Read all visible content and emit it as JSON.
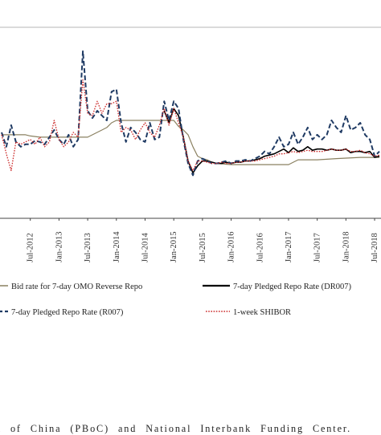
{
  "chart_data": {
    "type": "line",
    "x_ticks": [
      "Jul-2012",
      "Jan-2013",
      "Jul-2013",
      "Jan-2014",
      "Jul-2014",
      "Jan-2015",
      "Jul-2015",
      "Jan-2016",
      "Jul-2016",
      "Jan-2017",
      "Jul-2017",
      "Jan-2018",
      "Jul-2018"
    ],
    "x_start": "2012-01",
    "xlim_months": [
      0,
      79
    ],
    "ylim": [
      0,
      8
    ],
    "grid": false,
    "legend_position": "bottom",
    "series": [
      {
        "name": "Bid rate for 7-day OMO Reverse Repo",
        "color": "#8a8060",
        "style": "solid",
        "values": [
          [
            0,
            3.5
          ],
          [
            5,
            3.5
          ],
          [
            6,
            3.45
          ],
          [
            8,
            3.4
          ],
          [
            12,
            3.4
          ],
          [
            18,
            3.4
          ],
          [
            22,
            3.8
          ],
          [
            23,
            4.0
          ],
          [
            24,
            4.1
          ],
          [
            30,
            4.1
          ],
          [
            34,
            4.1
          ],
          [
            36,
            4.1
          ],
          [
            37,
            3.85
          ],
          [
            38,
            3.7
          ],
          [
            39,
            3.5
          ],
          [
            40,
            3.0
          ],
          [
            41,
            2.6
          ],
          [
            42,
            2.5
          ],
          [
            43,
            2.45
          ],
          [
            44,
            2.35
          ],
          [
            45,
            2.3
          ],
          [
            48,
            2.25
          ],
          [
            60,
            2.25
          ],
          [
            61,
            2.35
          ],
          [
            62,
            2.45
          ],
          [
            63,
            2.45
          ],
          [
            64,
            2.45
          ],
          [
            66,
            2.45
          ],
          [
            70,
            2.5
          ],
          [
            75,
            2.55
          ],
          [
            79,
            2.55
          ]
        ]
      },
      {
        "name": "7-day Pledged Repo Rate (DR007)",
        "color": "#000000",
        "style": "solid",
        "values": [
          [
            34,
            4.5
          ],
          [
            35,
            4.0
          ],
          [
            36,
            4.6
          ],
          [
            37,
            4.3
          ],
          [
            38,
            3.4
          ],
          [
            39,
            2.4
          ],
          [
            40,
            1.9
          ],
          [
            41,
            2.2
          ],
          [
            42,
            2.4
          ],
          [
            43,
            2.4
          ],
          [
            44,
            2.35
          ],
          [
            45,
            2.3
          ],
          [
            46,
            2.3
          ],
          [
            47,
            2.35
          ],
          [
            48,
            2.3
          ],
          [
            49,
            2.35
          ],
          [
            50,
            2.35
          ],
          [
            51,
            2.4
          ],
          [
            52,
            2.4
          ],
          [
            53,
            2.45
          ],
          [
            54,
            2.5
          ],
          [
            55,
            2.6
          ],
          [
            56,
            2.65
          ],
          [
            57,
            2.7
          ],
          [
            58,
            2.8
          ],
          [
            59,
            2.9
          ],
          [
            60,
            2.75
          ],
          [
            61,
            2.95
          ],
          [
            62,
            2.8
          ],
          [
            63,
            2.85
          ],
          [
            64,
            3.0
          ],
          [
            65,
            2.85
          ],
          [
            66,
            2.9
          ],
          [
            67,
            2.9
          ],
          [
            68,
            2.85
          ],
          [
            69,
            2.9
          ],
          [
            70,
            2.85
          ],
          [
            71,
            2.85
          ],
          [
            72,
            2.9
          ],
          [
            73,
            2.75
          ],
          [
            74,
            2.8
          ],
          [
            75,
            2.8
          ],
          [
            76,
            2.75
          ],
          [
            77,
            2.8
          ],
          [
            78,
            2.55
          ],
          [
            79,
            2.6
          ]
        ]
      },
      {
        "name": "7-day Pledged Repo Rate (R007)",
        "color": "#1f3a63",
        "style": "dashed",
        "values": [
          [
            0,
            3.6
          ],
          [
            1,
            3.0
          ],
          [
            2,
            3.9
          ],
          [
            3,
            3.2
          ],
          [
            4,
            3.0
          ],
          [
            5,
            3.1
          ],
          [
            6,
            3.1
          ],
          [
            7,
            3.25
          ],
          [
            8,
            3.2
          ],
          [
            9,
            3.1
          ],
          [
            10,
            3.4
          ],
          [
            11,
            3.7
          ],
          [
            12,
            3.3
          ],
          [
            13,
            3.1
          ],
          [
            14,
            3.5
          ],
          [
            15,
            3.0
          ],
          [
            16,
            3.3
          ],
          [
            17,
            7.0
          ],
          [
            18,
            4.5
          ],
          [
            19,
            4.2
          ],
          [
            20,
            4.5
          ],
          [
            21,
            4.3
          ],
          [
            22,
            4.1
          ],
          [
            23,
            5.3
          ],
          [
            24,
            5.4
          ],
          [
            25,
            4.0
          ],
          [
            26,
            3.2
          ],
          [
            27,
            3.8
          ],
          [
            28,
            3.6
          ],
          [
            29,
            3.3
          ],
          [
            30,
            3.2
          ],
          [
            31,
            4.0
          ],
          [
            32,
            3.3
          ],
          [
            33,
            3.4
          ],
          [
            34,
            4.9
          ],
          [
            35,
            4.1
          ],
          [
            36,
            4.9
          ],
          [
            37,
            4.6
          ],
          [
            38,
            3.3
          ],
          [
            39,
            2.3
          ],
          [
            40,
            1.8
          ],
          [
            41,
            2.4
          ],
          [
            42,
            2.5
          ],
          [
            43,
            2.4
          ],
          [
            44,
            2.3
          ],
          [
            45,
            2.3
          ],
          [
            46,
            2.35
          ],
          [
            47,
            2.4
          ],
          [
            48,
            2.3
          ],
          [
            49,
            2.4
          ],
          [
            50,
            2.4
          ],
          [
            51,
            2.45
          ],
          [
            52,
            2.4
          ],
          [
            53,
            2.5
          ],
          [
            54,
            2.6
          ],
          [
            55,
            2.8
          ],
          [
            56,
            2.7
          ],
          [
            57,
            3.0
          ],
          [
            58,
            3.4
          ],
          [
            59,
            3.0
          ],
          [
            60,
            3.1
          ],
          [
            61,
            3.6
          ],
          [
            62,
            3.1
          ],
          [
            63,
            3.4
          ],
          [
            64,
            3.8
          ],
          [
            65,
            3.3
          ],
          [
            66,
            3.5
          ],
          [
            67,
            3.3
          ],
          [
            68,
            3.5
          ],
          [
            69,
            4.1
          ],
          [
            70,
            3.8
          ],
          [
            71,
            3.6
          ],
          [
            72,
            4.3
          ],
          [
            73,
            3.7
          ],
          [
            74,
            3.8
          ],
          [
            75,
            4.0
          ],
          [
            76,
            3.5
          ],
          [
            77,
            3.3
          ],
          [
            78,
            2.6
          ],
          [
            79,
            2.8
          ]
        ]
      },
      {
        "name": "1-week SHIBOR",
        "color": "#cc2a2a",
        "style": "dotted",
        "values": [
          [
            0,
            3.5
          ],
          [
            1,
            2.7
          ],
          [
            2,
            2.0
          ],
          [
            3,
            3.2
          ],
          [
            4,
            3.1
          ],
          [
            5,
            3.2
          ],
          [
            6,
            3.3
          ],
          [
            7,
            3.1
          ],
          [
            8,
            3.4
          ],
          [
            9,
            3.0
          ],
          [
            10,
            3.2
          ],
          [
            11,
            4.1
          ],
          [
            12,
            3.3
          ],
          [
            13,
            3.0
          ],
          [
            14,
            3.2
          ],
          [
            15,
            3.6
          ],
          [
            16,
            3.4
          ],
          [
            17,
            5.8
          ],
          [
            18,
            4.4
          ],
          [
            19,
            4.3
          ],
          [
            20,
            4.9
          ],
          [
            21,
            4.4
          ],
          [
            22,
            4.8
          ],
          [
            23,
            4.8
          ],
          [
            24,
            4.9
          ],
          [
            25,
            3.6
          ],
          [
            26,
            3.8
          ],
          [
            27,
            3.7
          ],
          [
            28,
            3.3
          ],
          [
            29,
            3.7
          ],
          [
            30,
            4.0
          ],
          [
            31,
            3.6
          ],
          [
            32,
            3.4
          ],
          [
            33,
            3.9
          ],
          [
            34,
            4.6
          ],
          [
            35,
            3.9
          ],
          [
            36,
            4.6
          ],
          [
            37,
            4.0
          ],
          [
            38,
            3.4
          ],
          [
            39,
            2.4
          ],
          [
            40,
            2.0
          ],
          [
            41,
            2.4
          ],
          [
            42,
            2.4
          ],
          [
            43,
            2.35
          ],
          [
            44,
            2.3
          ],
          [
            45,
            2.3
          ],
          [
            46,
            2.35
          ],
          [
            47,
            2.3
          ],
          [
            48,
            2.3
          ],
          [
            49,
            2.35
          ],
          [
            50,
            2.35
          ],
          [
            51,
            2.4
          ],
          [
            52,
            2.4
          ],
          [
            53,
            2.4
          ],
          [
            54,
            2.45
          ],
          [
            55,
            2.5
          ],
          [
            56,
            2.55
          ],
          [
            57,
            2.6
          ],
          [
            58,
            2.7
          ],
          [
            59,
            2.7
          ],
          [
            60,
            2.75
          ],
          [
            61,
            2.8
          ],
          [
            62,
            2.75
          ],
          [
            63,
            2.8
          ],
          [
            64,
            2.85
          ],
          [
            65,
            2.8
          ],
          [
            66,
            2.8
          ],
          [
            67,
            2.8
          ],
          [
            68,
            2.85
          ],
          [
            69,
            2.9
          ],
          [
            70,
            2.85
          ],
          [
            71,
            2.85
          ],
          [
            72,
            2.9
          ],
          [
            73,
            2.8
          ],
          [
            74,
            2.8
          ],
          [
            75,
            2.85
          ],
          [
            76,
            2.75
          ],
          [
            77,
            2.7
          ],
          [
            78,
            2.6
          ],
          [
            79,
            2.65
          ]
        ]
      }
    ]
  },
  "source_note": "k of China (PBoC) and National Interbank Funding Center."
}
